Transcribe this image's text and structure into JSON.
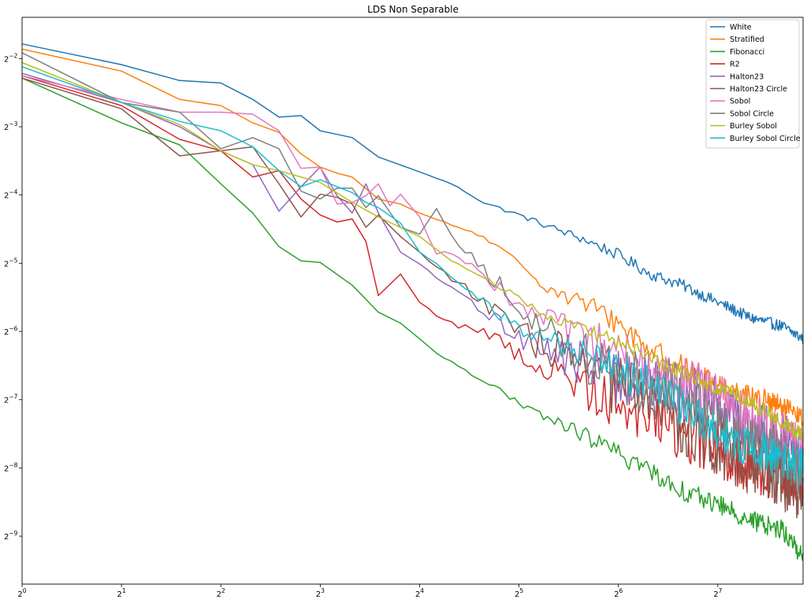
{
  "chart_data": {
    "type": "line",
    "title": "LDS Non Separable",
    "xlabel": "",
    "ylabel": "",
    "x_scale": "log2",
    "y_scale": "log2",
    "xlim": [
      1,
      232
    ],
    "ylim": [
      0.0012,
      0.38
    ],
    "x_ticks": [
      {
        "value": 1,
        "base": "2",
        "exp": "0"
      },
      {
        "value": 2,
        "base": "2",
        "exp": "1"
      },
      {
        "value": 4,
        "base": "2",
        "exp": "2"
      },
      {
        "value": 8,
        "base": "2",
        "exp": "3"
      },
      {
        "value": 16,
        "base": "2",
        "exp": "4"
      },
      {
        "value": 32,
        "base": "2",
        "exp": "5"
      },
      {
        "value": 64,
        "base": "2",
        "exp": "6"
      },
      {
        "value": 128,
        "base": "2",
        "exp": "7"
      }
    ],
    "y_ticks": [
      {
        "value": 0.25,
        "base": "2",
        "exp": "−2"
      },
      {
        "value": 0.125,
        "base": "2",
        "exp": "−3"
      },
      {
        "value": 0.0625,
        "base": "2",
        "exp": "−4"
      },
      {
        "value": 0.03125,
        "base": "2",
        "exp": "−5"
      },
      {
        "value": 0.015625,
        "base": "2",
        "exp": "−6"
      },
      {
        "value": 0.0078125,
        "base": "2",
        "exp": "−7"
      },
      {
        "value": 0.00390625,
        "base": "2",
        "exp": "−8"
      },
      {
        "value": 0.001953125,
        "base": "2",
        "exp": "−9"
      }
    ],
    "grid": false,
    "legend_position": "top-right",
    "series": [
      {
        "name": "White",
        "color": "#1f77b4",
        "tail_noise": 0.06,
        "x": [
          1,
          2,
          3,
          4,
          5,
          6,
          7,
          8,
          10,
          12,
          16,
          20,
          25,
          32,
          40,
          50,
          64,
          80,
          100,
          128,
          160,
          200,
          232
        ],
        "y": [
          0.29,
          0.235,
          0.2,
          0.195,
          0.165,
          0.138,
          0.14,
          0.12,
          0.112,
          0.092,
          0.079,
          0.07,
          0.058,
          0.051,
          0.045,
          0.04,
          0.034,
          0.028,
          0.025,
          0.021,
          0.018,
          0.0165,
          0.0145
        ]
      },
      {
        "name": "Stratified",
        "color": "#ff7f0e",
        "tail_noise": 0.12,
        "x": [
          1,
          2,
          3,
          4,
          5,
          6,
          7,
          8,
          9,
          10,
          12,
          14,
          16,
          20,
          24,
          28,
          32,
          40,
          50,
          64,
          80,
          100,
          128,
          160,
          200,
          232
        ],
        "y": [
          0.275,
          0.22,
          0.165,
          0.155,
          0.13,
          0.118,
          0.095,
          0.083,
          0.078,
          0.075,
          0.06,
          0.057,
          0.052,
          0.046,
          0.042,
          0.036,
          0.031,
          0.024,
          0.021,
          0.017,
          0.013,
          0.011,
          0.0091,
          0.0082,
          0.0072,
          0.0064
        ]
      },
      {
        "name": "Fibonacci",
        "color": "#2ca02c",
        "tail_noise": 0.1,
        "x": [
          1,
          2,
          3,
          4,
          5,
          6,
          7,
          8,
          10,
          12,
          14,
          16,
          18,
          20,
          24,
          28,
          32,
          40,
          50,
          64,
          80,
          100,
          128,
          160,
          200,
          232
        ],
        "y": [
          0.205,
          0.13,
          0.104,
          0.07,
          0.052,
          0.037,
          0.032,
          0.0315,
          0.025,
          0.019,
          0.017,
          0.0145,
          0.0125,
          0.0115,
          0.0098,
          0.0086,
          0.0074,
          0.0064,
          0.0055,
          0.0045,
          0.0038,
          0.0031,
          0.0027,
          0.0023,
          0.0021,
          0.00158
        ]
      },
      {
        "name": "R2",
        "color": "#d62728",
        "tail_noise": 0.3,
        "x": [
          1,
          2,
          3,
          4,
          5,
          6,
          7,
          8,
          9,
          10,
          11,
          12,
          14,
          16,
          18,
          20,
          24,
          28,
          32,
          40,
          50,
          64,
          80,
          100,
          128,
          160,
          200,
          232
        ],
        "y": [
          0.21,
          0.155,
          0.11,
          0.098,
          0.075,
          0.08,
          0.06,
          0.051,
          0.0475,
          0.049,
          0.039,
          0.0225,
          0.028,
          0.021,
          0.0185,
          0.017,
          0.016,
          0.014,
          0.0125,
          0.0105,
          0.0092,
          0.0078,
          0.0068,
          0.0055,
          0.0048,
          0.0041,
          0.0037,
          0.0038
        ]
      },
      {
        "name": "Halton23",
        "color": "#9467bd",
        "tail_noise": 0.3,
        "x": [
          1,
          2,
          3,
          4,
          5,
          6,
          7,
          8,
          9,
          10,
          11,
          12,
          14,
          16,
          18,
          20,
          24,
          28,
          32,
          40,
          50,
          64,
          80,
          100,
          128,
          160,
          200,
          232
        ],
        "y": [
          0.215,
          0.16,
          0.125,
          0.098,
          0.085,
          0.053,
          0.068,
          0.083,
          0.062,
          0.052,
          0.07,
          0.052,
          0.035,
          0.031,
          0.027,
          0.024,
          0.02,
          0.017,
          0.015,
          0.013,
          0.011,
          0.01,
          0.0092,
          0.0086,
          0.0073,
          0.006,
          0.0052,
          0.0045
        ]
      },
      {
        "name": "Halton23 Circle",
        "color": "#8c564b",
        "tail_noise": 0.35,
        "x": [
          1,
          2,
          3,
          4,
          5,
          6,
          7,
          8,
          9,
          10,
          11,
          12,
          14,
          16,
          18,
          20,
          24,
          28,
          32,
          40,
          50,
          64,
          80,
          100,
          128,
          160,
          200,
          232
        ],
        "y": [
          0.205,
          0.15,
          0.093,
          0.098,
          0.102,
          0.07,
          0.05,
          0.063,
          0.061,
          0.057,
          0.045,
          0.051,
          0.041,
          0.035,
          0.03,
          0.027,
          0.022,
          0.018,
          0.0155,
          0.0131,
          0.0112,
          0.0092,
          0.0075,
          0.0061,
          0.005,
          0.0042,
          0.0036,
          0.0031
        ]
      },
      {
        "name": "Sobol",
        "color": "#e377c2",
        "tail_noise": 0.25,
        "x": [
          1,
          2,
          3,
          4,
          5,
          6,
          7,
          8,
          9,
          10,
          11,
          12,
          13,
          14,
          16,
          18,
          20,
          24,
          28,
          32,
          40,
          50,
          64,
          80,
          100,
          128,
          160,
          200,
          232
        ],
        "y": [
          0.21,
          0.165,
          0.145,
          0.145,
          0.142,
          0.12,
          0.082,
          0.083,
          0.057,
          0.058,
          0.062,
          0.07,
          0.056,
          0.063,
          0.05,
          0.034,
          0.035,
          0.03,
          0.024,
          0.02,
          0.017,
          0.014,
          0.0125,
          0.0106,
          0.0095,
          0.008,
          0.0068,
          0.0055,
          0.0048
        ]
      },
      {
        "name": "Sobol Circle",
        "color": "#7f7f7f",
        "tail_noise": 0.3,
        "x": [
          1,
          2,
          3,
          4,
          5,
          6,
          7,
          8,
          9,
          10,
          11,
          12,
          14,
          16,
          18,
          20,
          24,
          28,
          32,
          40,
          50,
          64,
          80,
          100,
          128,
          160,
          200,
          232
        ],
        "y": [
          0.265,
          0.16,
          0.145,
          0.1,
          0.112,
          0.1,
          0.065,
          0.06,
          0.067,
          0.067,
          0.055,
          0.062,
          0.045,
          0.042,
          0.055,
          0.042,
          0.031,
          0.025,
          0.018,
          0.016,
          0.012,
          0.0102,
          0.0088,
          0.0075,
          0.0062,
          0.0052,
          0.0043,
          0.0038
        ]
      },
      {
        "name": "Burley Sobol",
        "color": "#bcbd22",
        "tail_noise": 0.08,
        "x": [
          1,
          2,
          3,
          4,
          5,
          6,
          7,
          8,
          10,
          12,
          16,
          20,
          24,
          32,
          40,
          50,
          64,
          80,
          100,
          128,
          160,
          200,
          232
        ],
        "y": [
          0.24,
          0.16,
          0.128,
          0.098,
          0.085,
          0.08,
          0.075,
          0.071,
          0.058,
          0.05,
          0.041,
          0.032,
          0.028,
          0.022,
          0.018,
          0.016,
          0.014,
          0.012,
          0.0102,
          0.0088,
          0.0077,
          0.0062,
          0.0054
        ]
      },
      {
        "name": "Burley Sobol Circle",
        "color": "#17becf",
        "tail_noise": 0.2,
        "x": [
          1,
          2,
          3,
          4,
          5,
          6,
          7,
          8,
          9,
          10,
          11,
          12,
          14,
          16,
          18,
          20,
          24,
          28,
          32,
          40,
          50,
          64,
          80,
          100,
          128,
          160,
          200,
          232
        ],
        "y": [
          0.23,
          0.16,
          0.132,
          0.12,
          0.102,
          0.08,
          0.068,
          0.073,
          0.068,
          0.064,
          0.058,
          0.055,
          0.047,
          0.035,
          0.031,
          0.027,
          0.022,
          0.0185,
          0.016,
          0.014,
          0.0125,
          0.0108,
          0.009,
          0.0072,
          0.0055,
          0.0048,
          0.0042,
          0.0039
        ]
      }
    ]
  }
}
